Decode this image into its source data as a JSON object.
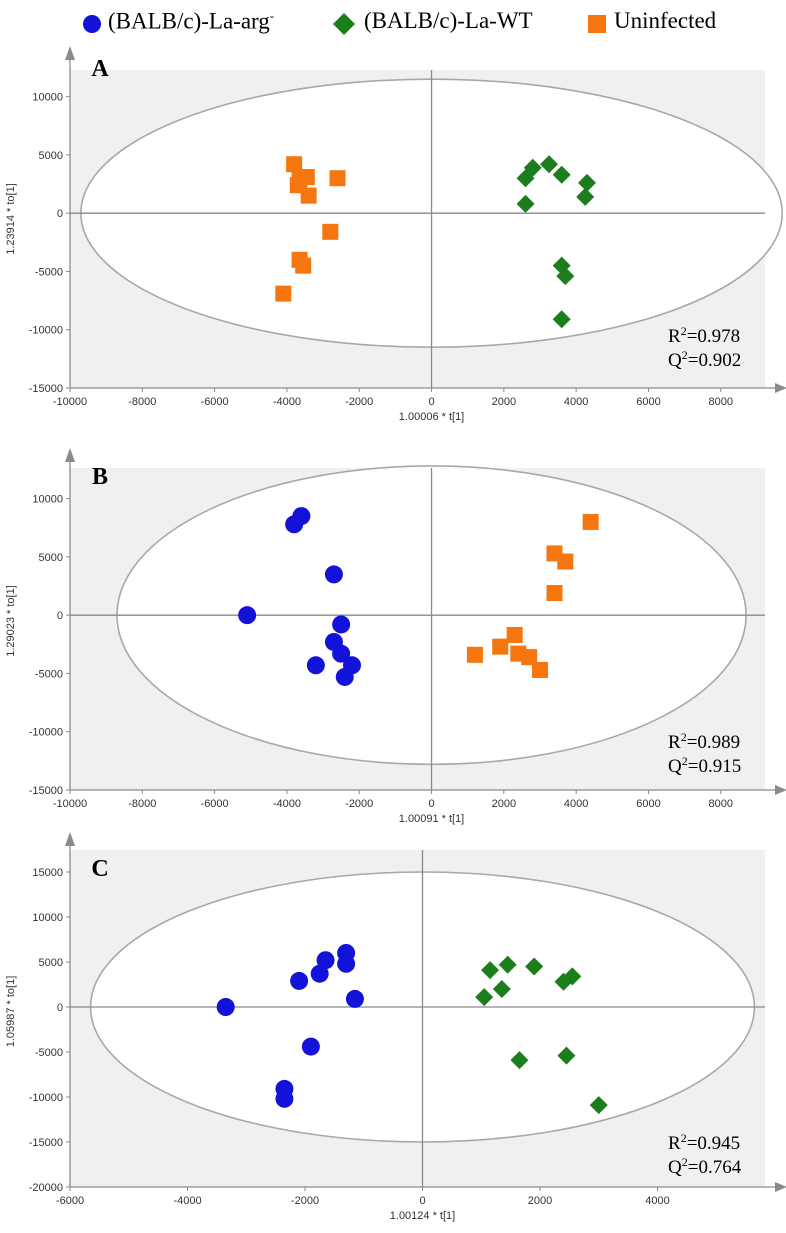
{
  "legend": {
    "items": [
      {
        "label": "(BALB/c)-La-arg",
        "sup": "-",
        "marker": "circle",
        "color": "#1212d8"
      },
      {
        "label": "(BALB/c)-La-WT",
        "sup": "",
        "marker": "diamond",
        "color": "#1b7d1b"
      },
      {
        "label": "Uninfected",
        "sup": "",
        "marker": "square",
        "color": "#f5760f"
      }
    ]
  },
  "colors": {
    "arg": "#1212d8",
    "wt": "#1b7d1b",
    "uninf": "#f5760f",
    "panel_bg": "#f0f0f0",
    "axis": "#8a8a8a",
    "ellipse": "#a8a8a8"
  },
  "chart_data": [
    {
      "type": "scatter",
      "panel": "A",
      "xlabel": "1.00006 * t[1]",
      "ylabel": "1.23914 * to[1]",
      "xlim": [
        -10000,
        9500
      ],
      "ylim": [
        -15000,
        14000
      ],
      "xticks": [
        -10000,
        -8000,
        -6000,
        -4000,
        -2000,
        0,
        2000,
        4000,
        6000,
        8000
      ],
      "yticks": [
        -15000,
        -10000,
        -5000,
        0,
        5000,
        10000
      ],
      "ellipse": {
        "rx": 9700,
        "ry": 11500
      },
      "r2_label": "R",
      "r2_value": "=0.978",
      "q2_label": "Q",
      "q2_value": "=0.902",
      "series": [
        {
          "name": "(BALB/c)-La-WT",
          "marker": "diamond",
          "color": "#1b7d1b",
          "points": [
            [
              2600,
              3000
            ],
            [
              2800,
              3900
            ],
            [
              3250,
              4200
            ],
            [
              3600,
              3300
            ],
            [
              4300,
              2600
            ],
            [
              4250,
              1400
            ],
            [
              2600,
              800
            ],
            [
              3600,
              -4500
            ],
            [
              3700,
              -5400
            ],
            [
              3600,
              -9100
            ]
          ]
        },
        {
          "name": "Uninfected",
          "marker": "square",
          "color": "#f5760f",
          "points": [
            [
              -3800,
              4200
            ],
            [
              -3450,
              3100
            ],
            [
              -3650,
              2900
            ],
            [
              -3700,
              2400
            ],
            [
              -3400,
              1500
            ],
            [
              -2600,
              3000
            ],
            [
              -2800,
              -1600
            ],
            [
              -3650,
              -4000
            ],
            [
              -3550,
              -4500
            ],
            [
              -4100,
              -6900
            ]
          ]
        }
      ]
    },
    {
      "type": "scatter",
      "panel": "B",
      "xlabel": "1.00091 * t[1]",
      "ylabel": "1.29023 * to[1]",
      "xlim": [
        -10000,
        9500
      ],
      "ylim": [
        -15000,
        14000
      ],
      "xticks": [
        -10000,
        -8000,
        -6000,
        -4000,
        -2000,
        0,
        2000,
        4000,
        6000,
        8000
      ],
      "yticks": [
        -15000,
        -10000,
        -5000,
        0,
        5000,
        10000
      ],
      "ellipse": {
        "rx": 8700,
        "ry": 12800
      },
      "r2_label": "R",
      "r2_value": "=0.989",
      "q2_label": "Q",
      "q2_value": "=0.915",
      "series": [
        {
          "name": "(BALB/c)-La-arg",
          "marker": "circle",
          "color": "#1212d8",
          "points": [
            [
              -3600,
              8500
            ],
            [
              -3800,
              7800
            ],
            [
              -2700,
              3500
            ],
            [
              -5100,
              0
            ],
            [
              -2500,
              -800
            ],
            [
              -2700,
              -2300
            ],
            [
              -2500,
              -3300
            ],
            [
              -3200,
              -4300
            ],
            [
              -2200,
              -4300
            ],
            [
              -2400,
              -5300
            ]
          ]
        },
        {
          "name": "Uninfected",
          "marker": "square",
          "color": "#f5760f",
          "points": [
            [
              4400,
              8000
            ],
            [
              3400,
              5300
            ],
            [
              3700,
              4600
            ],
            [
              3400,
              1900
            ],
            [
              1200,
              -3400
            ],
            [
              1900,
              -2700
            ],
            [
              2300,
              -1700
            ],
            [
              2400,
              -3300
            ],
            [
              2700,
              -3600
            ],
            [
              3000,
              -4700
            ]
          ]
        }
      ]
    },
    {
      "type": "scatter",
      "panel": "C",
      "xlabel": "1.00124 * t[1]",
      "ylabel": "1.05987 * to[1]",
      "xlim": [
        -6000,
        6000
      ],
      "ylim": [
        -20000,
        19000
      ],
      "xticks": [
        -6000,
        -4000,
        -2000,
        0,
        2000,
        4000
      ],
      "yticks": [
        -20000,
        -15000,
        -10000,
        -5000,
        0,
        5000,
        10000,
        15000
      ],
      "ellipse": {
        "rx": 5650,
        "ry": 15000
      },
      "r2_label": "R",
      "r2_value": "=0.945",
      "q2_label": "Q",
      "q2_value": "=0.764",
      "series": [
        {
          "name": "(BALB/c)-La-arg",
          "marker": "circle",
          "color": "#1212d8",
          "points": [
            [
              -1300,
              6000
            ],
            [
              -1300,
              4800
            ],
            [
              -1650,
              5200
            ],
            [
              -1750,
              3700
            ],
            [
              -2100,
              2900
            ],
            [
              -1150,
              900
            ],
            [
              -3350,
              0
            ],
            [
              -1900,
              -4400
            ],
            [
              -2350,
              -9100
            ],
            [
              -2350,
              -10200
            ]
          ]
        },
        {
          "name": "(BALB/c)-La-WT",
          "marker": "diamond",
          "color": "#1b7d1b",
          "points": [
            [
              1150,
              4100
            ],
            [
              1450,
              4700
            ],
            [
              1900,
              4500
            ],
            [
              2550,
              3400
            ],
            [
              2400,
              2800
            ],
            [
              1350,
              2000
            ],
            [
              1050,
              1100
            ],
            [
              1650,
              -5900
            ],
            [
              2450,
              -5400
            ],
            [
              3000,
              -10900
            ]
          ]
        }
      ]
    }
  ]
}
